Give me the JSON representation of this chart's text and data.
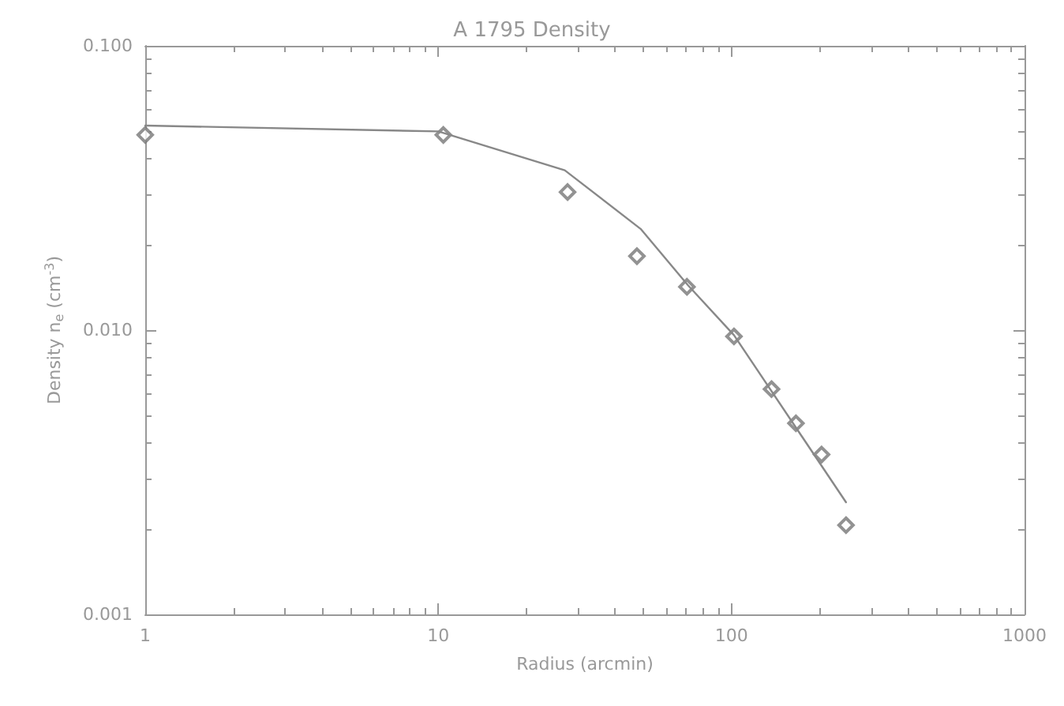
{
  "chart_data": {
    "type": "scatter",
    "title": "A 1795 Density",
    "xlabel": "Radius (arcmin)",
    "ylabel": "Density n$_{e}$ (cm$^{-3}$)",
    "log": "xy",
    "grid": false,
    "xlim": [
      1,
      1000
    ],
    "ylim": [
      0.001,
      0.1
    ],
    "xticks": [
      1,
      10,
      100,
      1000
    ],
    "yticks": [
      {
        "value": 0.001,
        "label": "0.001"
      },
      {
        "value": 0.01,
        "label": "0.010"
      },
      {
        "value": 0.1,
        "label": "0.100"
      }
    ],
    "series": [
      {
        "marker": "diamond",
        "color": "#777777",
        "x": [
          1,
          10.4,
          27.6,
          47.6,
          70.5,
          102,
          137,
          166,
          203,
          246
        ],
        "values": [
          0.0486,
          0.0486,
          0.0306,
          0.0182,
          0.0142,
          0.0095,
          0.0062,
          0.0047,
          0.00365,
          0.00206
        ]
      },
      {
        "type": "line",
        "marker": "none",
        "line_style": "solid",
        "color": "#888888",
        "x": [
          1,
          10,
          27,
          49,
          71,
          102,
          246
        ],
        "values": [
          0.0524,
          0.05,
          0.0365,
          0.0227,
          0.0144,
          0.0096,
          0.00248
        ]
      }
    ]
  }
}
